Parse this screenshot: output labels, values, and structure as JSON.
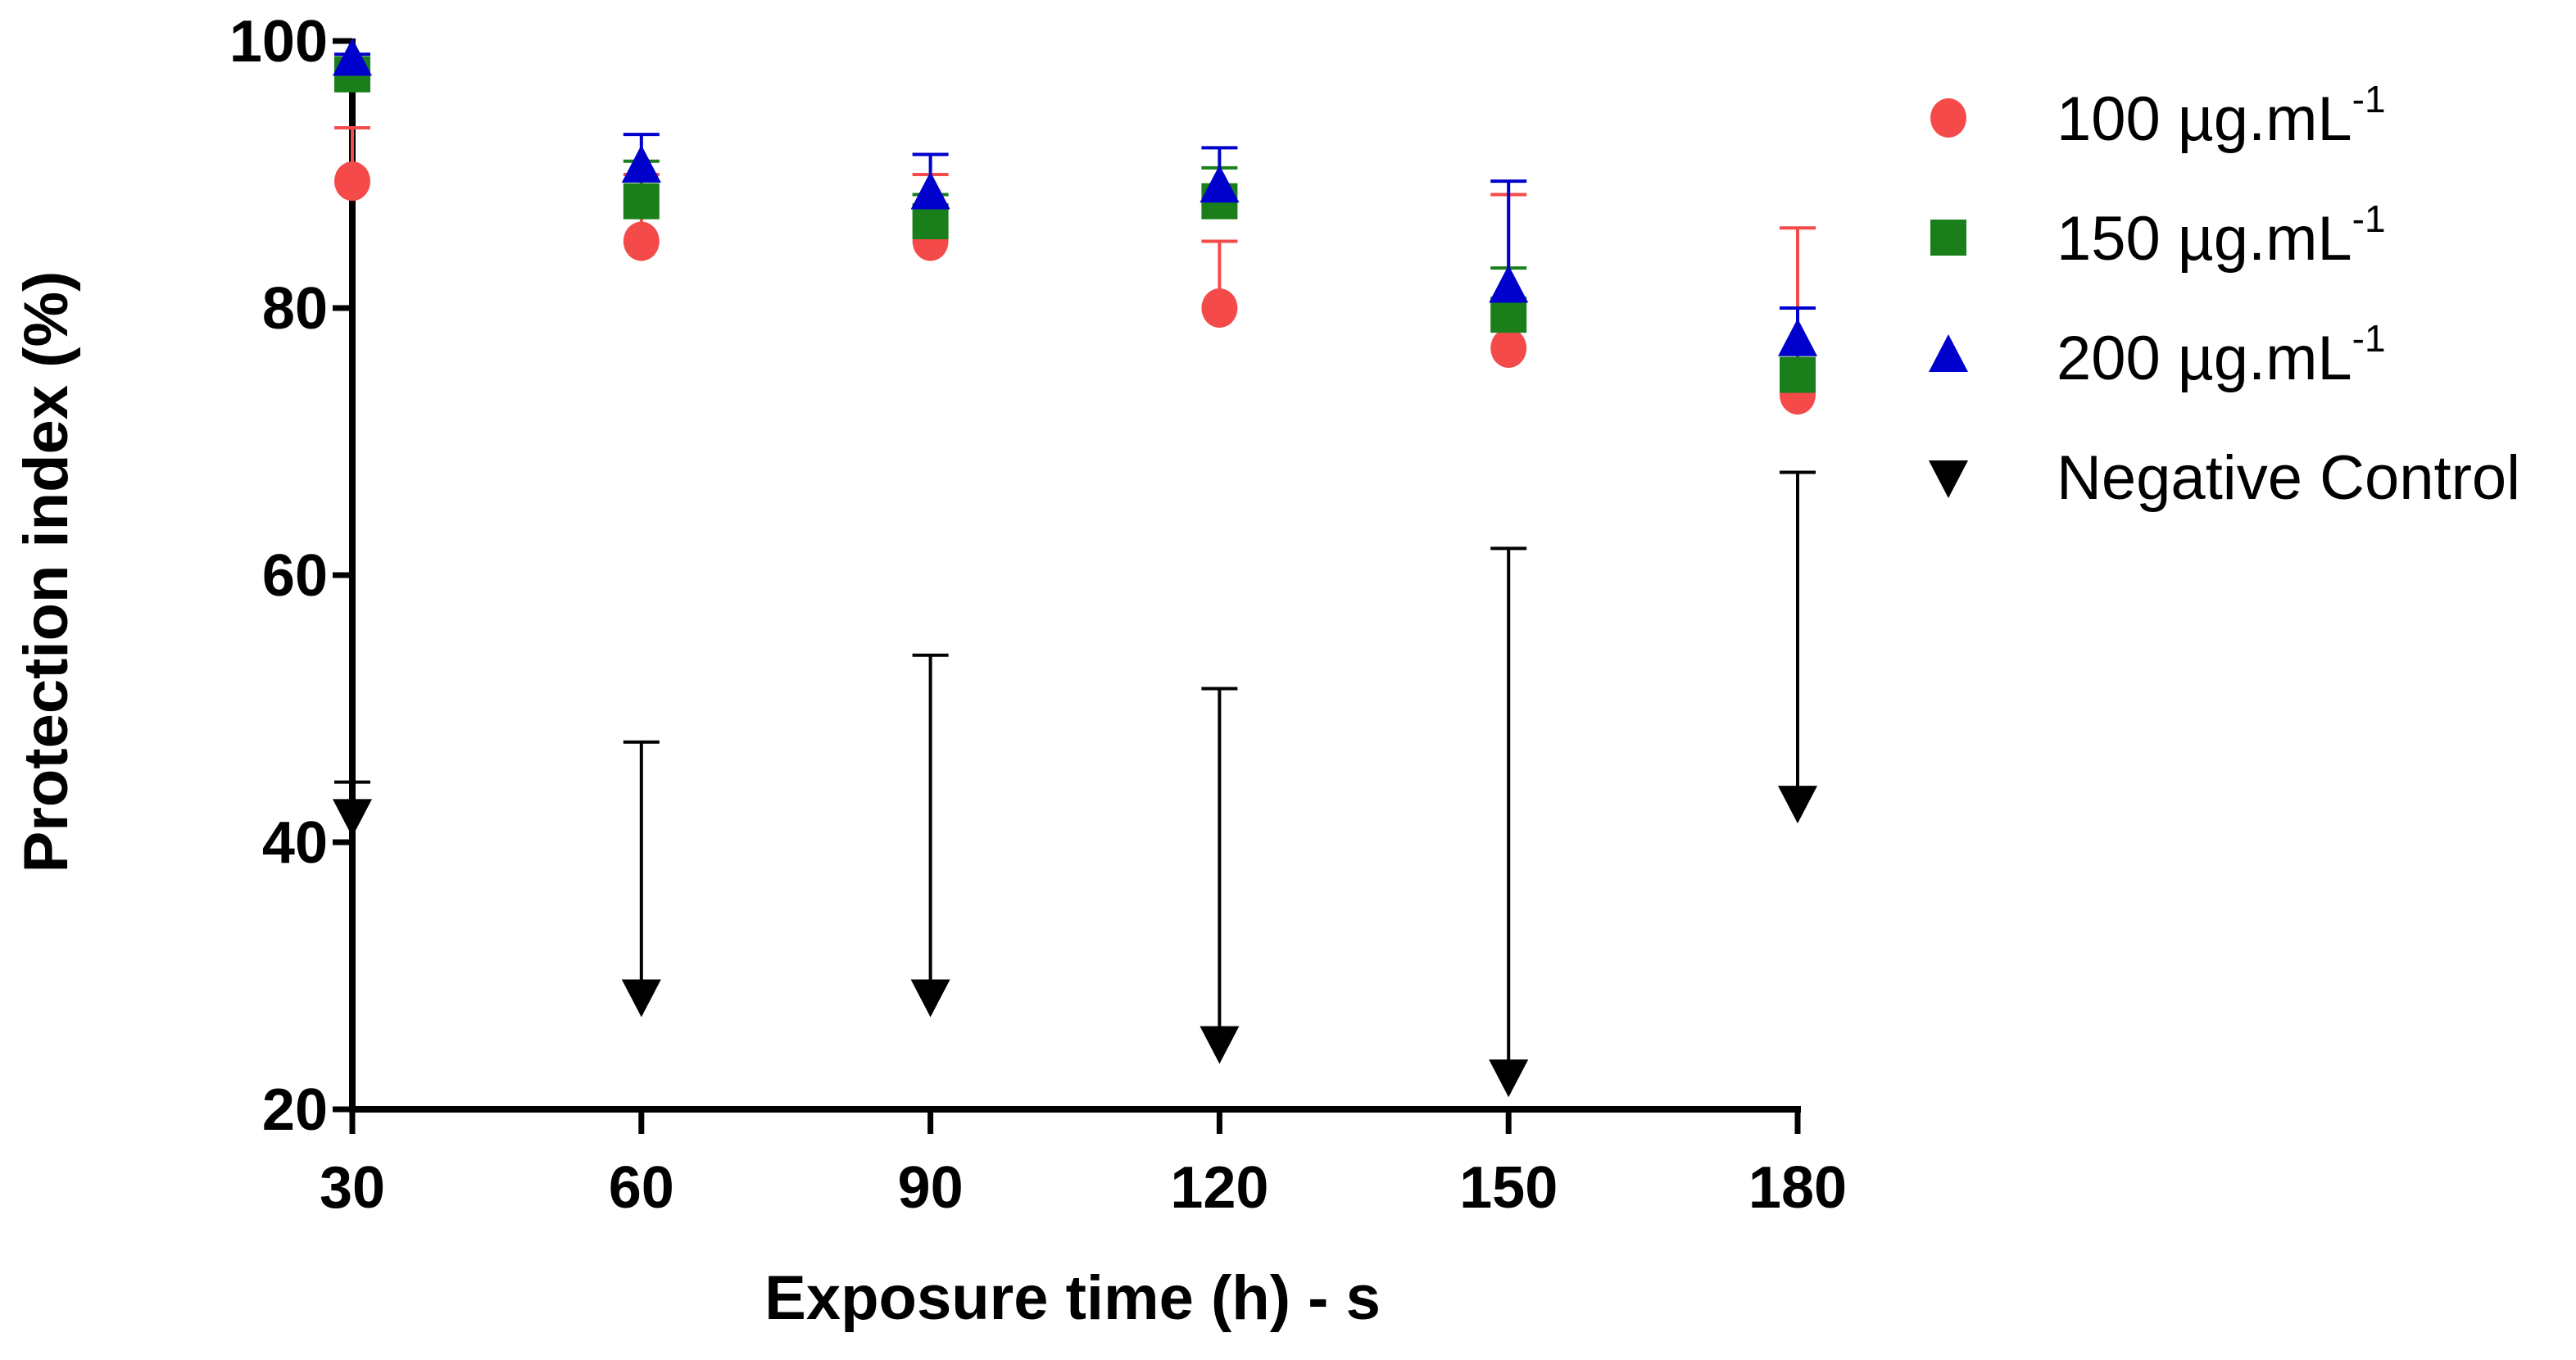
{
  "chart_data": {
    "type": "scatter",
    "title": "",
    "xlabel": "Exposure time (h) - s",
    "ylabel": "Protection index  (%)",
    "x": [
      30,
      60,
      90,
      120,
      150,
      180
    ],
    "x_ticks": [
      "30",
      "60",
      "90",
      "120",
      "150",
      "180"
    ],
    "y_ticks": [
      "20",
      "40",
      "60",
      "80",
      "100"
    ],
    "xlim": [
      30,
      180
    ],
    "ylim": [
      20,
      100
    ],
    "legend_position": "right",
    "series": [
      {
        "name": "100 µg.mL",
        "superscript": "-1",
        "marker": "circle",
        "color": "#f44a4a",
        "values": [
          89.5,
          85,
          85,
          80,
          77,
          73.5
        ],
        "error_upper": [
          93.5,
          90,
          90,
          85,
          88.5,
          86
        ],
        "error_direction": "up"
      },
      {
        "name": "150 µg.mL",
        "superscript": "-1",
        "marker": "square",
        "color": "#1a7f1a",
        "values": [
          97.5,
          88,
          86.5,
          88,
          79.5,
          75
        ],
        "error_upper": [
          98,
          91,
          88.5,
          90.5,
          83,
          80
        ],
        "error_direction": "up"
      },
      {
        "name": "200 µg.mL",
        "superscript": "-1",
        "marker": "triangle-up",
        "color": "#0000cc",
        "values": [
          98.5,
          90.5,
          88.5,
          89,
          81.5,
          77.5
        ],
        "error_upper": [
          99,
          93,
          91.5,
          92,
          89.5,
          80
        ],
        "error_direction": "up"
      },
      {
        "name": "Negative Control",
        "superscript": "",
        "marker": "triangle-down",
        "color": "#000000",
        "values": [
          42,
          28.5,
          28.5,
          25,
          22.5,
          43
        ],
        "error_upper": [
          44.5,
          47.5,
          54,
          51.5,
          62,
          67.7
        ],
        "error_direction": "up"
      }
    ]
  }
}
